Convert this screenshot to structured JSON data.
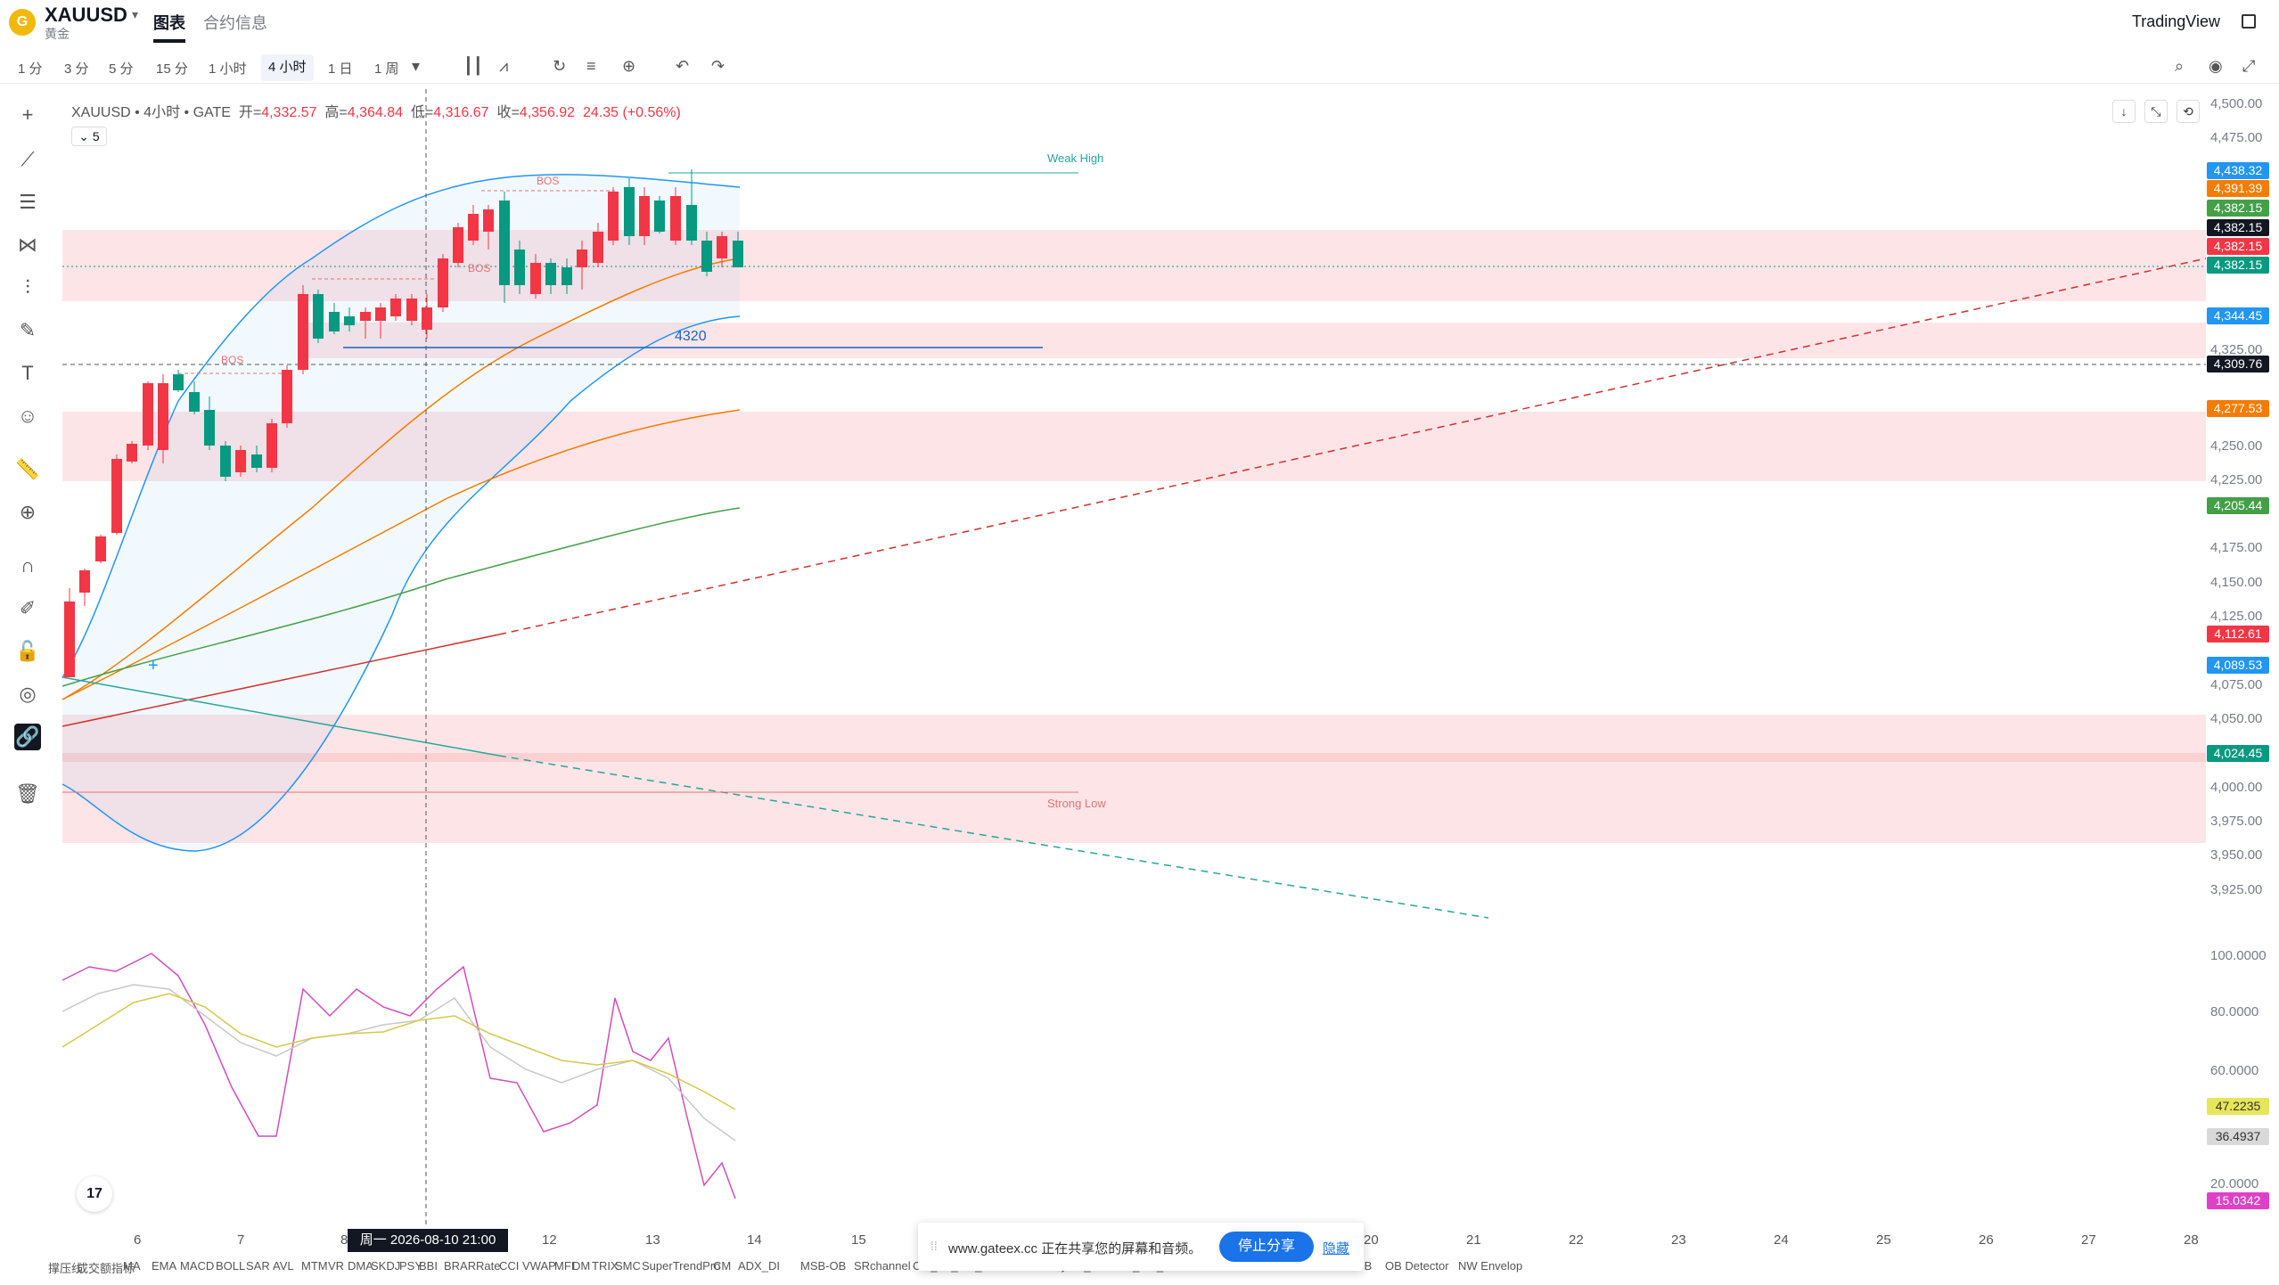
{
  "header": {
    "logo_glyph": "G",
    "symbol": "XAUUSD",
    "symbol_sub": "黄金",
    "tabs": [
      {
        "label": "图表"
      },
      {
        "label": "合约信息"
      }
    ],
    "brand": "TradingView"
  },
  "toolbar": {
    "timeframes": [
      {
        "label": "1 分",
        "active": false
      },
      {
        "label": "3 分",
        "active": false
      },
      {
        "label": "5 分",
        "active": false
      },
      {
        "label": "15 分",
        "active": false
      },
      {
        "label": "1 小时",
        "active": false
      },
      {
        "label": "4 小时",
        "active": true
      },
      {
        "label": "1 日",
        "active": false
      },
      {
        "label": "1 周",
        "active": false
      }
    ],
    "dropdown_glyph": "▾"
  },
  "legend": {
    "symbol_line": "XAUUSD • 4小时 • GATE",
    "open_label": "开=",
    "open": "4,332.57",
    "high_label": "高=",
    "high": "4,364.84",
    "low_label": "低=",
    "low": "4,316.67",
    "close_label": "收=",
    "close": "4,356.92",
    "change": "24.35 (+0.56%)",
    "collapsed_count": "5"
  },
  "annotations": {
    "weak_high": "Weak High",
    "strong_low": "Strong Low",
    "bos": "BOS",
    "level": "4320"
  },
  "price_scale": {
    "labels": [
      "4,500.00",
      "4,475.00",
      "4,325.00",
      "4,250.00",
      "4,225.00",
      "4,175.00",
      "4,150.00",
      "4,125.00",
      "4,075.00",
      "4,050.00",
      "4,000.00",
      "3,975.00",
      "3,950.00",
      "3,925.00"
    ],
    "badges": [
      {
        "text": "4,438.32",
        "color": "#2196f3"
      },
      {
        "text": "4,391.39",
        "color": "#f57c00"
      },
      {
        "text": "4,382.15",
        "color": "#43a047"
      },
      {
        "text": "4,382.15",
        "color": "#131722"
      },
      {
        "text": "4,382.15",
        "color": "#f23645"
      },
      {
        "text": "4,382.15",
        "color": "#089981"
      },
      {
        "text": "4,344.45",
        "color": "#2196f3"
      },
      {
        "text": "4,309.76",
        "color": "#131722"
      },
      {
        "text": "4,277.53",
        "color": "#f57c00"
      },
      {
        "text": "4,205.44",
        "color": "#43a047"
      },
      {
        "text": "4,112.61",
        "color": "#f23645"
      },
      {
        "text": "4,089.53",
        "color": "#2196f3"
      },
      {
        "text": "4,024.45",
        "color": "#089981"
      }
    ],
    "osc_labels": [
      "100.0000",
      "80.0000",
      "60.0000",
      "20.0000"
    ],
    "osc_badges": [
      {
        "text": "47.2235",
        "color": "#e6e65a",
        "fg": "#333"
      },
      {
        "text": "36.4937",
        "color": "#d9d9d9",
        "fg": "#333"
      },
      {
        "text": "15.0342",
        "color": "#e040c8",
        "fg": "#fff"
      }
    ]
  },
  "time_axis": {
    "labels": [
      {
        "text": "6"
      },
      {
        "text": "7"
      },
      {
        "text": "8"
      },
      {
        "text": "12"
      },
      {
        "text": "13"
      },
      {
        "text": "14"
      },
      {
        "text": "15"
      },
      {
        "text": "20"
      },
      {
        "text": "21"
      },
      {
        "text": "22"
      },
      {
        "text": "23"
      },
      {
        "text": "24"
      },
      {
        "text": "25"
      },
      {
        "text": "26"
      },
      {
        "text": "27"
      },
      {
        "text": "28"
      }
    ],
    "crosshair": "周一 2026-08-10  21:00"
  },
  "indicators": [
    "撑压线",
    "成交额指标",
    "MA",
    "EMA",
    "MACD",
    "BOLL",
    "SAR",
    "AVL",
    "MTM",
    "VR",
    "DMA",
    "SKDJ",
    "PSY",
    "BBI",
    "BRAR",
    "Rate",
    "CCI",
    "VWAP",
    "MFI",
    "DM",
    "TRIX",
    "SMC",
    "SuperTrendPro",
    "CM",
    "ADX_DI",
    "MSB-OB",
    "SRchannel",
    "CM_Ult_MA_V2",
    "TMA Overlay",
    "CM_Ultimate_MA_MTF",
    "OB Finder",
    "Candlestick Patterns",
    "FBB",
    "OB Detector",
    "NW Envelop"
  ],
  "share_banner": {
    "text": "www.gateex.cc 正在共享您的屏幕和音频。",
    "stop_label": "停止分享",
    "hide_label": "隐藏"
  },
  "watermark": "17"
}
